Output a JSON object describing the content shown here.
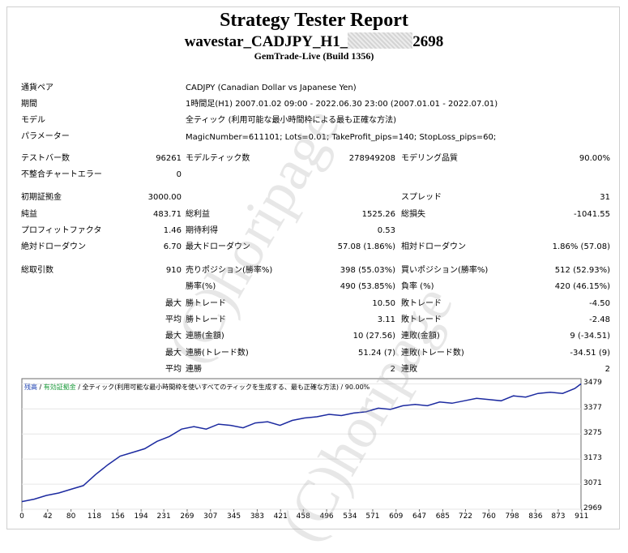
{
  "header": {
    "title": "Strategy Tester Report",
    "ea_prefix": "wavestar_CADJPY_H1_",
    "ea_suffix": "2698",
    "server": "GemTrade-Live (Build 1356)"
  },
  "info": {
    "symbol_label": "通貨ペア",
    "symbol_value": "CADJPY (Canadian Dollar vs Japanese Yen)",
    "period_label": "期間",
    "period_value": "1時間足(H1) 2007.01.02 09:00 - 2022.06.30 23:00 (2007.01.01 - 2022.07.01)",
    "model_label": "モデル",
    "model_value": "全ティック (利用可能な最小時間枠による最も正確な方法)",
    "params_label": "パラメーター",
    "params_value": "MagicNumber=611101; Lots=0.01; TakeProfit_pips=140; StopLoss_pips=60;"
  },
  "stats": {
    "bars_label": "テストバー数",
    "bars_value": "96261",
    "ticks_label": "モデルティック数",
    "ticks_value": "278949208",
    "quality_label": "モデリング品質",
    "quality_value": "90.00%",
    "mismatch_label": "不整合チャートエラー",
    "mismatch_value": "0",
    "deposit_label": "初期証拠金",
    "deposit_value": "3000.00",
    "spread_label": "スプレッド",
    "spread_value": "31",
    "net_label": "純益",
    "net_value": "483.71",
    "gross_profit_label": "総利益",
    "gross_profit_value": "1525.26",
    "gross_loss_label": "総損失",
    "gross_loss_value": "-1041.55",
    "pf_label": "プロフィットファクタ",
    "pf_value": "1.46",
    "payoff_label": "期待利得",
    "payoff_value": "0.53",
    "abs_dd_label": "絶対ドローダウン",
    "abs_dd_value": "6.70",
    "max_dd_label": "最大ドローダウン",
    "max_dd_value": "57.08 (1.86%)",
    "rel_dd_label": "相対ドローダウン",
    "rel_dd_value": "1.86% (57.08)",
    "trades_label": "総取引数",
    "trades_value": "910",
    "short_label": "売りポジション(勝率%)",
    "short_value": "398 (55.03%)",
    "long_label": "買いポジション(勝率%)",
    "long_value": "512 (52.93%)",
    "win_label": "勝率(%)",
    "win_value": "490 (53.85%)",
    "loss_label": "負率 (%)",
    "loss_value": "420 (46.15%)",
    "max_word": "最大",
    "avg_word": "平均",
    "largest_win_label": "勝トレード",
    "largest_win_value": "10.50",
    "largest_loss_label": "敗トレード",
    "largest_loss_value": "-4.50",
    "avg_win_label": "勝トレード",
    "avg_win_value": "3.11",
    "avg_loss_label": "敗トレード",
    "avg_loss_value": "-2.48",
    "cw_money_label": "連勝(金額)",
    "cw_money_value": "10 (27.56)",
    "cl_money_label": "連敗(金額)",
    "cl_money_value": "9 (-34.51)",
    "cw_trades_label": "連勝(トレード数)",
    "cw_trades_value": "51.24 (7)",
    "cl_trades_label": "連敗(トレード数)",
    "cl_trades_value": "-34.51 (9)",
    "avg_cw_label": "連勝",
    "avg_cw_value": "2",
    "avg_cl_label": "連敗",
    "avg_cl_value": "2"
  },
  "watermark": "(C)horipage",
  "chart_data": {
    "type": "line",
    "legend": {
      "balance": "残高",
      "sep1": " / ",
      "equity": "有効証拠金",
      "sep2": " / ",
      "model": "全ティック(利用可能な最小時間枠を使いすべてのティックを生成する、最も正確な方法)",
      "sep3": " / ",
      "quality": "90.00%"
    },
    "xlim": [
      0,
      910
    ],
    "ylim": [
      2969,
      3500
    ],
    "x_ticks": [
      "0",
      "42",
      "80",
      "118",
      "156",
      "194",
      "231",
      "269",
      "307",
      "345",
      "383",
      "421",
      "458",
      "496",
      "534",
      "571",
      "609",
      "647",
      "685",
      "722",
      "760",
      "798",
      "836",
      "873",
      "911"
    ],
    "y_ticks": [
      "3479",
      "3377",
      "3275",
      "3173",
      "3071",
      "2969"
    ],
    "line_color": "#1c2aa0",
    "series": [
      {
        "x": [
          0,
          20,
          40,
          60,
          80,
          100,
          120,
          140,
          160,
          180,
          200,
          220,
          240,
          260,
          280,
          300,
          320,
          340,
          360,
          380,
          400,
          420,
          440,
          460,
          480,
          500,
          520,
          540,
          560,
          580,
          600,
          620,
          640,
          660,
          680,
          700,
          720,
          740,
          760,
          780,
          800,
          820,
          840,
          860,
          880,
          900,
          910
        ],
        "y": [
          3000,
          3010,
          3025,
          3035,
          3050,
          3065,
          3110,
          3150,
          3185,
          3200,
          3215,
          3245,
          3265,
          3295,
          3305,
          3295,
          3315,
          3310,
          3300,
          3320,
          3325,
          3310,
          3330,
          3340,
          3345,
          3355,
          3350,
          3360,
          3365,
          3380,
          3375,
          3390,
          3395,
          3390,
          3405,
          3400,
          3410,
          3420,
          3415,
          3410,
          3430,
          3425,
          3440,
          3445,
          3440,
          3460,
          3479
        ]
      }
    ]
  }
}
